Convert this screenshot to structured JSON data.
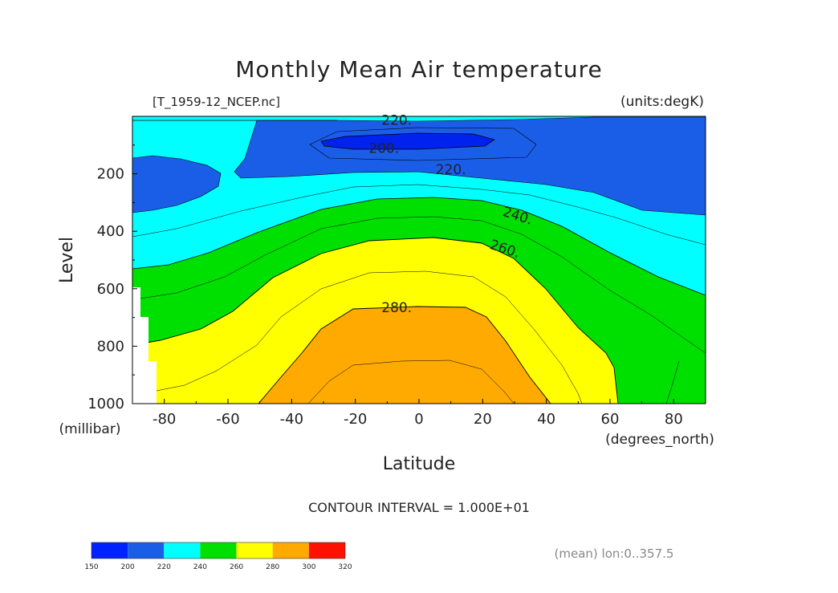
{
  "chart_data": {
    "type": "contour",
    "title": "Monthly Mean Air temperature",
    "file_label": "[T_1959-12_NCEP.nc]",
    "units_label": "(units:degK)",
    "xlabel": "Latitude",
    "x_units": "(degrees_north)",
    "ylabel": "Level",
    "y_units": "(millibar)",
    "xlim": [
      -90,
      90
    ],
    "ylim": [
      1000,
      0
    ],
    "x_ticks": [
      "-80",
      "-60",
      "-40",
      "-20",
      "0",
      "20",
      "40",
      "60",
      "80"
    ],
    "x_tick_values": [
      -80,
      -60,
      -40,
      -20,
      0,
      20,
      40,
      60,
      80
    ],
    "y_ticks": [
      "200",
      "400",
      "600",
      "800",
      "1000"
    ],
    "y_tick_values": [
      200,
      400,
      600,
      800,
      1000
    ],
    "contour_interval_text": "CONTOUR INTERVAL = 1.000E+01",
    "mean_label": "(mean) lon:0..357.5",
    "contour_labels": [
      {
        "text": "220.",
        "lat": -7,
        "level": 12
      },
      {
        "text": "200.",
        "lat": -11,
        "level": 110
      },
      {
        "text": "220.",
        "lat": 10,
        "level": 185
      },
      {
        "text": "240.",
        "lat": 31,
        "level": 345
      },
      {
        "text": "260.",
        "lat": 27,
        "level": 460
      },
      {
        "text": "280.",
        "lat": -7,
        "level": 665
      }
    ],
    "fill_bands": [
      {
        "range": "200-220",
        "color": "#1a5ee8"
      },
      {
        "range": "150-200",
        "color": "#0033ee"
      },
      {
        "range": "220-240",
        "color": "#00ffff"
      },
      {
        "range": "240-260",
        "color": "#00e000"
      },
      {
        "range": "260-280",
        "color": "#ffff00"
      },
      {
        "range": "280-300",
        "color": "#ffaa00"
      }
    ],
    "colorbar": {
      "ticks": [
        "150",
        "200",
        "220",
        "240",
        "260",
        "280",
        "300",
        "320"
      ],
      "colors": [
        "#0022ff",
        "#1a5ee8",
        "#00ffff",
        "#00e000",
        "#ffff00",
        "#ffaa00",
        "#ff1100"
      ]
    }
  }
}
